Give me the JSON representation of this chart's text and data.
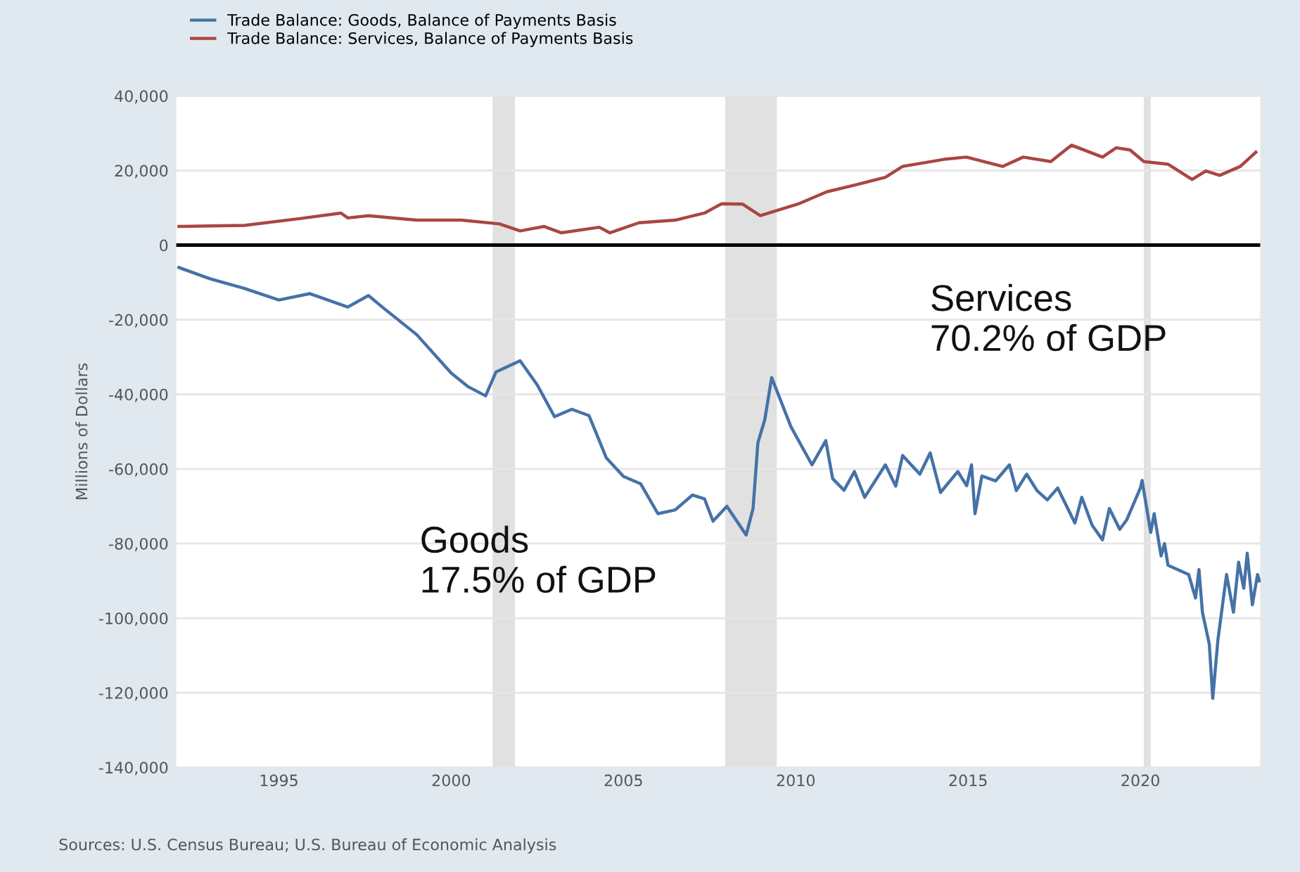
{
  "chart_data": {
    "type": "line",
    "ylabel": "Millions of Dollars",
    "xlim": [
      1992,
      2023.5
    ],
    "xticks": [
      1995,
      2000,
      2005,
      2010,
      2015,
      2020
    ],
    "ylim": [
      -140000,
      40000
    ],
    "yticks": [
      {
        "value": -140000,
        "label": "-140,000"
      },
      {
        "value": -120000,
        "label": "-120,000"
      },
      {
        "value": -100000,
        "label": "-100,000"
      },
      {
        "value": -80000,
        "label": "-80,000"
      },
      {
        "value": -60000,
        "label": "-60,000"
      },
      {
        "value": -40000,
        "label": "-40,000"
      },
      {
        "value": -20000,
        "label": "-20,000"
      },
      {
        "value": 0,
        "label": "0"
      },
      {
        "value": 20000,
        "label": "20,000"
      },
      {
        "value": 40000,
        "label": "40,000"
      }
    ],
    "grid": "y",
    "legend": "top left",
    "line_style": "solid",
    "marker": "none",
    "series": [
      {
        "name": "Trade Balance: Goods, Balance of Payments Basis",
        "color": "#4572a7",
        "x": [
          1992.1,
          1993,
          1994,
          1995,
          1995.9,
          1997,
          1997.6,
          1998,
          1999,
          2000,
          2000.5,
          2001,
          2001.3,
          2002,
          2002.5,
          2003,
          2003.5,
          2004,
          2004.5,
          2005,
          2005.5,
          2006,
          2006.5,
          2007,
          2007.35,
          2007.6,
          2008,
          2008.56,
          2008.76,
          2008.9,
          2009.1,
          2009.3,
          2009.86,
          2010.47,
          2010.87,
          2011.07,
          2011.4,
          2011.7,
          2012.0,
          2012.6,
          2012.9,
          2013.1,
          2013.6,
          2013.9,
          2014.2,
          2014.7,
          2014.96,
          2015.1,
          2015.2,
          2015.4,
          2015.8,
          2016.2,
          2016.4,
          2016.7,
          2017.0,
          2017.3,
          2017.6,
          2018.1,
          2018.3,
          2018.6,
          2018.9,
          2019.1,
          2019.4,
          2019.6,
          2020.0,
          2020.05,
          2020.3,
          2020.4,
          2020.6,
          2020.7,
          2020.8,
          2021.4,
          2021.6,
          2021.7,
          2021.8,
          2022.0,
          2022.1,
          2022.25,
          2022.5,
          2022.7,
          2022.85,
          2023.0,
          2023.1,
          2023.25,
          2023.4,
          2023.45
        ],
        "values": [
          -6000,
          -9000,
          -11600,
          -14700,
          -13000,
          -16600,
          -13500,
          -16600,
          -24000,
          -34300,
          -38000,
          -40400,
          -34000,
          -31000,
          -37500,
          -46000,
          -44000,
          -45700,
          -57000,
          -62000,
          -64000,
          -72000,
          -71000,
          -67000,
          -68000,
          -74000,
          -70000,
          -77700,
          -70600,
          -53000,
          -46800,
          -35500,
          -48700,
          -58900,
          -52400,
          -62600,
          -65700,
          -60700,
          -67600,
          -58900,
          -64600,
          -56400,
          -61400,
          -55700,
          -66300,
          -60700,
          -64500,
          -58900,
          -72000,
          -61900,
          -63200,
          -58900,
          -65800,
          -61400,
          -65800,
          -68300,
          -65100,
          -74500,
          -67600,
          -75100,
          -79000,
          -70600,
          -76200,
          -73700,
          -65100,
          -63100,
          -77000,
          -72000,
          -83300,
          -80000,
          -85800,
          -88300,
          -94600,
          -87000,
          -98400,
          -107000,
          -121500,
          -105800,
          -88300,
          -98400,
          -85000,
          -92000,
          -82600,
          -96400,
          -88300,
          -90000
        ]
      },
      {
        "name": "Trade Balance: Services, Balance of Payments Basis",
        "color": "#aa4643",
        "x": [
          1992.1,
          1994,
          1995.6,
          1996.8,
          1997.0,
          1997.6,
          1999,
          2000.3,
          2001.4,
          2002,
          2002.7,
          2003.2,
          2004.3,
          2004.6,
          2005.45,
          2006.5,
          2007.35,
          2007.85,
          2008.45,
          2008.97,
          2010.06,
          2010.9,
          2011.8,
          2012.6,
          2013.1,
          2014.3,
          2014.95,
          2016.0,
          2016.6,
          2017.4,
          2018.0,
          2018.9,
          2019.3,
          2019.7,
          2020.1,
          2020.8,
          2021.5,
          2021.9,
          2022.3,
          2022.9,
          2023.35
        ],
        "values": [
          5000,
          5300,
          7100,
          8600,
          7300,
          7900,
          6700,
          6700,
          5700,
          3800,
          5000,
          3300,
          4800,
          3300,
          6000,
          6700,
          8600,
          11100,
          11000,
          7900,
          11000,
          14300,
          16300,
          18200,
          21100,
          23000,
          23600,
          21100,
          23600,
          22400,
          26800,
          23600,
          26100,
          25500,
          22400,
          21700,
          17600,
          19900,
          18700,
          21100,
          24900
        ]
      }
    ],
    "ref_lines": [
      {
        "axis": "y",
        "value": 0,
        "color": "#000000",
        "line_style": "solid"
      }
    ],
    "bands": [
      {
        "axis": "x",
        "from": 2001.2,
        "to": 2001.85,
        "color": "#e1e1e1"
      },
      {
        "axis": "x",
        "from": 2007.95,
        "to": 2009.45,
        "color": "#e1e1e1"
      },
      {
        "axis": "x",
        "from": 2020.1,
        "to": 2020.3,
        "color": "#e1e1e1"
      }
    ],
    "annotations": [
      "Services\n70.2% of GDP",
      "Goods\n17.5% of GDP",
      "Sources: U.S. Census Bureau; U.S. Bureau of Economic Analysis"
    ]
  }
}
